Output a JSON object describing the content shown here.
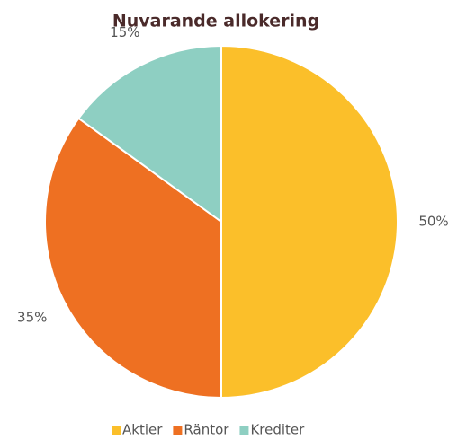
{
  "chart_data": {
    "type": "pie",
    "title": "Nuvarande allokering",
    "categories": [
      "Aktier",
      "Räntor",
      "Krediter"
    ],
    "values": [
      50,
      35,
      15
    ],
    "value_labels": [
      "50%",
      "35%",
      "15%"
    ],
    "colors": [
      "#fbbf2a",
      "#ee7022",
      "#8ecfc2"
    ],
    "legend": "bottom"
  }
}
